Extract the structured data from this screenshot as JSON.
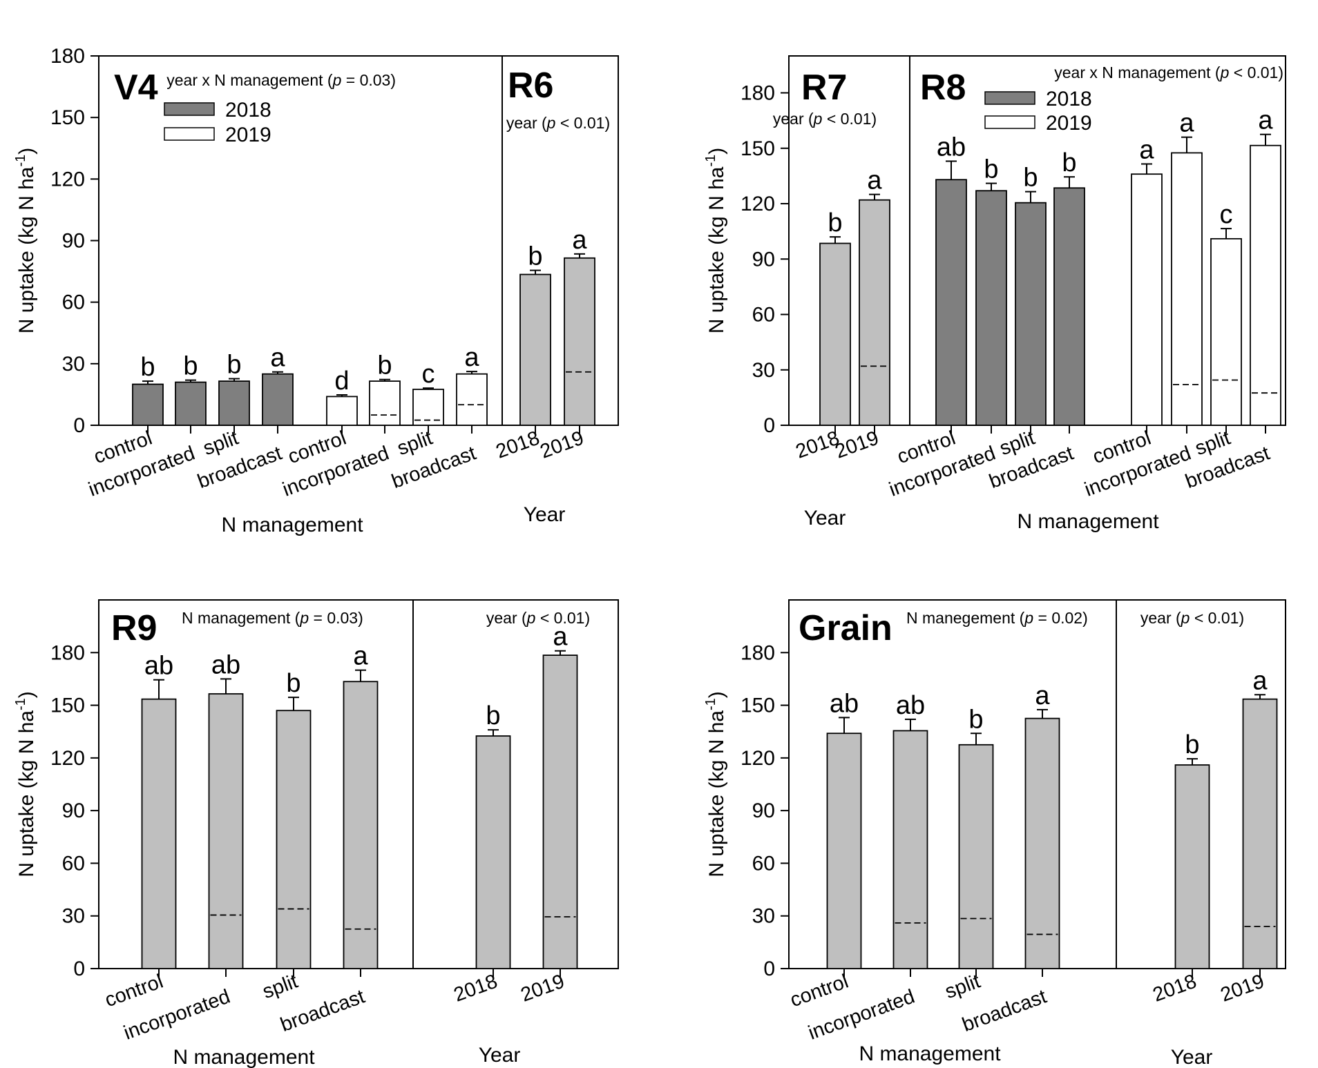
{
  "colors": {
    "gray": "#bfbfbf",
    "dark": "#7f7f7f",
    "white": "#ffffff",
    "line": "#000000"
  },
  "chart_data": [
    {
      "type": "bar",
      "panel": "top-left",
      "ylabel": "N uptake (kg N ha",
      "ylabel_sup": "-1",
      "ylabel_close": ")",
      "ylim": [
        0,
        180
      ],
      "yticks": [
        "0",
        "30",
        "60",
        "90",
        "120",
        "150",
        "180"
      ],
      "legend": {
        "position": "top-left",
        "entries": [
          {
            "label": "2018",
            "fill": "dark"
          },
          {
            "label": "2019",
            "fill": "white"
          }
        ]
      },
      "sections": [
        {
          "stage": "V4",
          "stats": {
            "prefix": "year x N management (",
            "p": "p",
            "suffix": " = 0.03)"
          },
          "xlabel": "N management",
          "groups": [
            {
              "categories": [
                "control",
                "incorporated",
                "split",
                "broadcast"
              ],
              "fill": "dark",
              "values": [
                20,
                21,
                21.5,
                25
              ],
              "errors": [
                1.5,
                1.0,
                1.2,
                1.0
              ],
              "letters": [
                "b",
                "b",
                "b",
                "a"
              ],
              "dashed": [
                null,
                null,
                null,
                null
              ]
            },
            {
              "categories": [
                "control",
                "incorporated",
                "split",
                "broadcast"
              ],
              "fill": "white",
              "values": [
                14,
                21.5,
                17.5,
                25
              ],
              "errors": [
                0.8,
                0.8,
                0.6,
                1.2
              ],
              "letters": [
                "d",
                "b",
                "c",
                "a"
              ],
              "dashed": [
                null,
                5,
                2.5,
                10
              ]
            }
          ]
        },
        {
          "stage": "R6",
          "stats": {
            "prefix": "year (",
            "p": "p",
            "suffix": " < 0.01)"
          },
          "xlabel": "Year",
          "groups": [
            {
              "categories": [
                "2018",
                "2019"
              ],
              "fill": "gray",
              "values": [
                73.5,
                81.5
              ],
              "errors": [
                2.0,
                2.0
              ],
              "letters": [
                "b",
                "a"
              ],
              "dashed": [
                null,
                26
              ]
            }
          ]
        }
      ]
    },
    {
      "type": "bar",
      "panel": "top-right",
      "ylabel": "N uptake (kg N ha",
      "ylabel_sup": "-1",
      "ylabel_close": ")",
      "ylim": [
        0,
        200
      ],
      "yticks": [
        "0",
        "30",
        "60",
        "90",
        "120",
        "150",
        "180"
      ],
      "legend": {
        "position": "top-center",
        "entries": [
          {
            "label": "2018",
            "fill": "dark"
          },
          {
            "label": "2019",
            "fill": "white"
          }
        ]
      },
      "sections": [
        {
          "stage": "R7",
          "stats": {
            "prefix": "year (",
            "p": "p",
            "suffix": " < 0.01)"
          },
          "xlabel": "Year",
          "groups": [
            {
              "categories": [
                "2018",
                "2019"
              ],
              "fill": "gray",
              "values": [
                98.5,
                122
              ],
              "errors": [
                3.5,
                3.0
              ],
              "letters": [
                "b",
                "a"
              ],
              "dashed": [
                null,
                32
              ]
            }
          ]
        },
        {
          "stage": "R8",
          "stats": {
            "prefix": "year x N management (",
            "p": "p",
            "suffix": " < 0.01)"
          },
          "xlabel": "N management",
          "groups": [
            {
              "categories": [
                "control",
                "incorporated",
                "split",
                "broadcast"
              ],
              "fill": "dark",
              "values": [
                133,
                127,
                120.5,
                128.5
              ],
              "errors": [
                10,
                4,
                6,
                6
              ],
              "letters": [
                "ab",
                "b",
                "b",
                "b"
              ],
              "dashed": [
                null,
                null,
                null,
                null
              ]
            },
            {
              "categories": [
                "control",
                "incorporated",
                "split",
                "broadcast"
              ],
              "fill": "white",
              "values": [
                136,
                147.5,
                101,
                151.5
              ],
              "errors": [
                5.5,
                8.5,
                5.5,
                6
              ],
              "letters": [
                "a",
                "a",
                "c",
                "a"
              ],
              "dashed": [
                null,
                22,
                24.5,
                17.5
              ]
            }
          ]
        }
      ]
    },
    {
      "type": "bar",
      "panel": "bottom-left",
      "ylabel": "N uptake (kg N ha",
      "ylabel_sup": "-1",
      "ylabel_close": ")",
      "ylim": [
        0,
        210
      ],
      "yticks": [
        "0",
        "30",
        "60",
        "90",
        "120",
        "150",
        "180"
      ],
      "legend": null,
      "sections": [
        {
          "stage": "R9",
          "stats": {
            "prefix": "N management (",
            "p": "p",
            "suffix": " = 0.03)"
          },
          "xlabel": "N management",
          "groups": [
            {
              "categories": [
                "control",
                "incorporated",
                "split",
                "broadcast"
              ],
              "fill": "gray",
              "values": [
                153.5,
                156.5,
                147,
                163.5
              ],
              "errors": [
                11,
                8.5,
                7.5,
                6.5
              ],
              "letters": [
                "ab",
                "ab",
                "b",
                "a"
              ],
              "dashed": [
                null,
                30.5,
                34,
                22.5
              ]
            }
          ]
        },
        {
          "stage": "",
          "stats": {
            "prefix": "year (",
            "p": "p",
            "suffix": " < 0.01)"
          },
          "xlabel": "Year",
          "groups": [
            {
              "categories": [
                "2018",
                "2019"
              ],
              "fill": "gray",
              "values": [
                132.5,
                178.5
              ],
              "errors": [
                3.5,
                2.5
              ],
              "letters": [
                "b",
                "a"
              ],
              "dashed": [
                null,
                29.5
              ]
            }
          ]
        }
      ]
    },
    {
      "type": "bar",
      "panel": "bottom-right",
      "ylabel": "N uptake (kg N ha",
      "ylabel_sup": "-1",
      "ylabel_close": ")",
      "ylim": [
        0,
        210
      ],
      "yticks": [
        "0",
        "30",
        "60",
        "90",
        "120",
        "150",
        "180"
      ],
      "legend": null,
      "sections": [
        {
          "stage": "Grain",
          "stats": {
            "prefix": "N manegement (",
            "p": "p",
            "suffix": " = 0.02)"
          },
          "xlabel": "N management",
          "groups": [
            {
              "categories": [
                "control",
                "incorporated",
                "split",
                "broadcast"
              ],
              "fill": "gray",
              "values": [
                134,
                135.5,
                127.5,
                142.5
              ],
              "errors": [
                9,
                6.5,
                6.5,
                5
              ],
              "letters": [
                "ab",
                "ab",
                "b",
                "a"
              ],
              "dashed": [
                null,
                26,
                28.5,
                19.5
              ]
            }
          ]
        },
        {
          "stage": "",
          "stats": {
            "prefix": "year (",
            "p": "p",
            "suffix": " < 0.01)"
          },
          "xlabel": "Year",
          "groups": [
            {
              "categories": [
                "2018",
                "2019"
              ],
              "fill": "gray",
              "values": [
                116,
                153.5
              ],
              "errors": [
                3.5,
                2.5
              ],
              "letters": [
                "b",
                "a"
              ],
              "dashed": [
                null,
                24
              ]
            }
          ]
        }
      ]
    }
  ]
}
